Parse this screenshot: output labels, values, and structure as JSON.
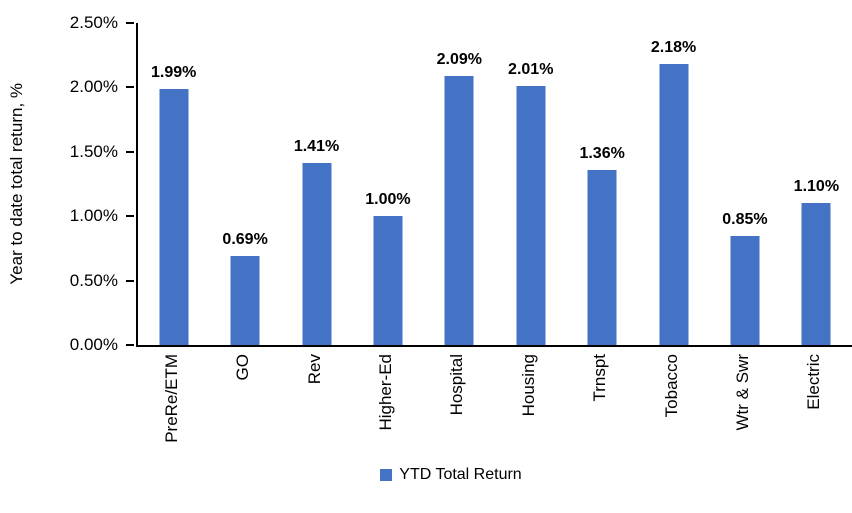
{
  "chart_data": {
    "type": "bar",
    "title": "",
    "ylabel": "Year to date total return, %",
    "xlabel": "",
    "categories": [
      "PreRe/ETM",
      "GO",
      "Rev",
      "Higher-Ed",
      "Hospital",
      "Housing",
      "Trnspt",
      "Tobacco",
      "Wtr & Swr",
      "Electric"
    ],
    "series": [
      {
        "name": "YTD Total Return",
        "values": [
          1.99,
          0.69,
          1.41,
          1.0,
          2.09,
          2.01,
          1.36,
          2.18,
          0.85,
          1.1
        ]
      }
    ],
    "data_labels": [
      "1.99%",
      "0.69%",
      "1.41%",
      "1.00%",
      "2.09%",
      "2.01%",
      "1.36%",
      "2.18%",
      "0.85%",
      "1.10%"
    ],
    "ylim": [
      0,
      2.5
    ],
    "ytick_labels": [
      "0.00%",
      "0.50%",
      "1.00%",
      "1.50%",
      "2.00%",
      "2.50%"
    ],
    "ytick_values": [
      0,
      0.5,
      1.0,
      1.5,
      2.0,
      2.5
    ],
    "grid": "off",
    "legend_position": "bottom",
    "colors": {
      "bar": "#4472C4",
      "axis": "#000000",
      "text": "#000000",
      "background": "#FFFFFF"
    }
  }
}
